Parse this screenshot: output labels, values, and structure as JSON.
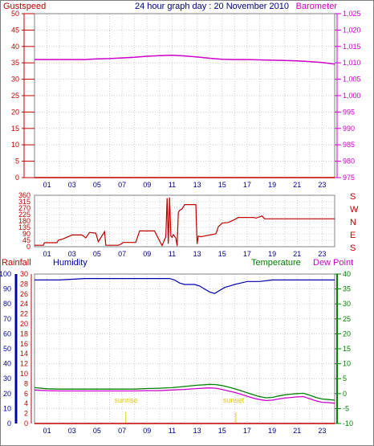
{
  "title": "24 hour graph day : 20 November 2010",
  "hour_labels": [
    "01",
    "03",
    "05",
    "07",
    "09",
    "11",
    "13",
    "15",
    "17",
    "19",
    "21",
    "23"
  ],
  "colors": {
    "gust": "#c00000",
    "baro": "#cc00cc",
    "dir": "#c00000",
    "rain": "#c00000",
    "hum": "#0000aa",
    "temp": "#008000",
    "dew": "#cc00cc",
    "sun": "#e6c800",
    "grid": "#cccccc"
  },
  "chart_data": [
    {
      "type": "line",
      "left_axis": {
        "label": "Gustspeed",
        "range": [
          0,
          50
        ],
        "ticks": [
          0,
          5,
          10,
          15,
          20,
          25,
          30,
          35,
          40,
          45,
          50
        ]
      },
      "right_axis": {
        "label": "Barometer",
        "range": [
          975,
          1025
        ],
        "ticks": [
          975,
          980,
          985,
          990,
          995,
          1000,
          1005,
          1010,
          1015,
          1020,
          1025
        ]
      },
      "x_range": [
        0,
        24
      ],
      "grid": true,
      "series": [
        {
          "name": "Gustspeed",
          "axis": "left",
          "x": [
            0,
            24
          ],
          "y": [
            0,
            0
          ]
        },
        {
          "name": "Barometer",
          "axis": "right",
          "x": [
            0,
            1,
            2,
            3,
            4,
            5,
            6,
            7,
            8,
            9,
            10,
            11,
            12,
            13,
            14,
            15,
            16,
            17,
            18,
            19,
            20,
            21,
            22,
            23,
            24
          ],
          "y": [
            1011,
            1011,
            1011,
            1011,
            1011,
            1011.2,
            1011.3,
            1011.5,
            1011.7,
            1012,
            1012.2,
            1012.3,
            1012.1,
            1011.8,
            1011.4,
            1011.1,
            1011.0,
            1011.0,
            1010.9,
            1010.8,
            1010.7,
            1010.6,
            1010.4,
            1010.1,
            1009.6
          ]
        }
      ]
    },
    {
      "type": "line",
      "left_axis": {
        "label": "",
        "range": [
          0,
          360
        ],
        "ticks": [
          0,
          45,
          90,
          135,
          180,
          225,
          270,
          315,
          360
        ]
      },
      "right_axis": {
        "label": "",
        "ticks": [
          "S",
          "E",
          "N",
          "W",
          "S"
        ]
      },
      "x_range": [
        0,
        24
      ],
      "grid": true,
      "series": [
        {
          "name": "",
          "x": [
            0,
            0.7,
            0.8,
            1.8,
            1.9,
            2.3,
            3.0,
            3.8,
            4.1,
            4.4,
            4.9,
            5.1,
            5.6,
            5.7,
            6.7,
            6.9,
            7.1,
            8.1,
            8.4,
            9.6,
            9.8,
            10.2,
            10.5,
            10.6,
            10.7,
            10.8,
            10.9,
            11.0,
            11.1,
            11.3,
            11.4,
            11.5,
            11.6,
            11.8,
            12.0,
            12.9,
            13.0,
            13.1,
            13.3,
            14.5,
            14.7,
            15.0,
            15.5,
            16.0,
            16.3,
            17.5,
            17.7,
            18.2,
            18.4,
            24
          ],
          "y": [
            10,
            10,
            28,
            28,
            45,
            55,
            82,
            82,
            62,
            100,
            95,
            35,
            105,
            10,
            10,
            18,
            30,
            30,
            110,
            110,
            75,
            8,
            70,
            340,
            20,
            345,
            75,
            65,
            85,
            60,
            5,
            240,
            255,
            265,
            295,
            295,
            20,
            75,
            70,
            90,
            140,
            165,
            170,
            190,
            205,
            205,
            200,
            215,
            195,
            195
          ]
        }
      ]
    },
    {
      "type": "line",
      "axes": [
        {
          "label": "Rainfall",
          "range": [
            0,
            30
          ],
          "ticks": [
            0,
            2,
            4,
            6,
            8,
            10,
            12,
            14,
            16,
            18,
            20,
            22,
            24,
            26,
            28,
            30
          ]
        },
        {
          "label": "Humidity",
          "range": [
            0,
            100
          ],
          "ticks": [
            0,
            10,
            20,
            30,
            40,
            50,
            60,
            70,
            80,
            90,
            100
          ]
        },
        {
          "label": "Temperature",
          "range": [
            -10,
            40
          ],
          "ticks": [
            -10,
            -5,
            0,
            5,
            10,
            15,
            20,
            25,
            30,
            35,
            40
          ]
        }
      ],
      "legend": [
        "Temperature",
        "Dew Point"
      ],
      "annotations": [
        {
          "text": "sunrise",
          "x": 7.3
        },
        {
          "text": "sunset",
          "x": 16.1
        }
      ],
      "x_range": [
        0,
        24
      ],
      "grid": true,
      "series": [
        {
          "name": "Humidity",
          "x": [
            0,
            1,
            2,
            3,
            4,
            5,
            6,
            7,
            8,
            9,
            10,
            10.8,
            11.2,
            11.6,
            12.0,
            12.4,
            12.8,
            13.2,
            13.6,
            14.0,
            14.4,
            14.8,
            15.2,
            15.6,
            16.0,
            16.5,
            17.0,
            18.0,
            19.0,
            20.0,
            21.0,
            22.0,
            23.0,
            24
          ],
          "y": [
            96,
            96,
            96,
            96.5,
            97,
            97,
            97,
            97,
            97,
            97,
            97,
            97,
            96,
            94,
            93,
            93,
            93,
            92,
            90,
            88,
            87,
            89,
            91,
            92,
            93,
            94,
            95,
            95,
            96,
            96,
            96,
            96,
            96,
            96
          ]
        },
        {
          "name": "Temperature",
          "x": [
            0,
            1,
            2,
            3,
            4,
            5,
            6,
            7,
            8,
            9,
            10,
            11,
            12,
            13,
            14,
            14.5,
            15,
            15.5,
            16,
            16.5,
            17,
            17.5,
            18,
            18.5,
            19,
            19.5,
            20,
            20.5,
            21,
            21.5,
            22,
            22.5,
            23,
            23.5,
            24
          ],
          "y": [
            2.0,
            1.6,
            1.5,
            1.5,
            1.5,
            1.5,
            1.5,
            1.5,
            1.5,
            1.7,
            1.8,
            2.0,
            2.4,
            2.8,
            3.1,
            3.0,
            2.7,
            2.2,
            1.6,
            1.0,
            0.3,
            -0.4,
            -1.0,
            -1.4,
            -1.3,
            -0.8,
            -0.4,
            -0.2,
            0.0,
            0.1,
            -0.5,
            -1.3,
            -1.8,
            -2.0,
            -2.2
          ]
        },
        {
          "name": "Dew Point",
          "x": [
            0,
            1,
            2,
            3,
            4,
            5,
            6,
            7,
            8,
            9,
            10,
            11,
            12,
            13,
            14,
            14.5,
            15,
            15.5,
            16,
            16.5,
            17,
            17.5,
            18,
            18.5,
            19,
            19.5,
            20,
            20.5,
            21,
            21.5,
            22,
            22.5,
            23,
            23.5,
            24
          ],
          "y": [
            1.2,
            1.0,
            0.9,
            0.9,
            0.9,
            0.9,
            0.9,
            0.9,
            0.9,
            1.0,
            1.0,
            1.2,
            1.4,
            1.7,
            1.9,
            1.8,
            1.4,
            0.9,
            0.4,
            -0.2,
            -0.9,
            -1.5,
            -2.0,
            -2.3,
            -2.2,
            -1.8,
            -1.5,
            -1.3,
            -1.1,
            -1.0,
            -1.7,
            -2.4,
            -2.9,
            -3.0,
            -3.2
          ]
        },
        {
          "name": "Rainfall",
          "x": [
            0,
            24
          ],
          "y": [
            0,
            0
          ]
        }
      ]
    }
  ]
}
